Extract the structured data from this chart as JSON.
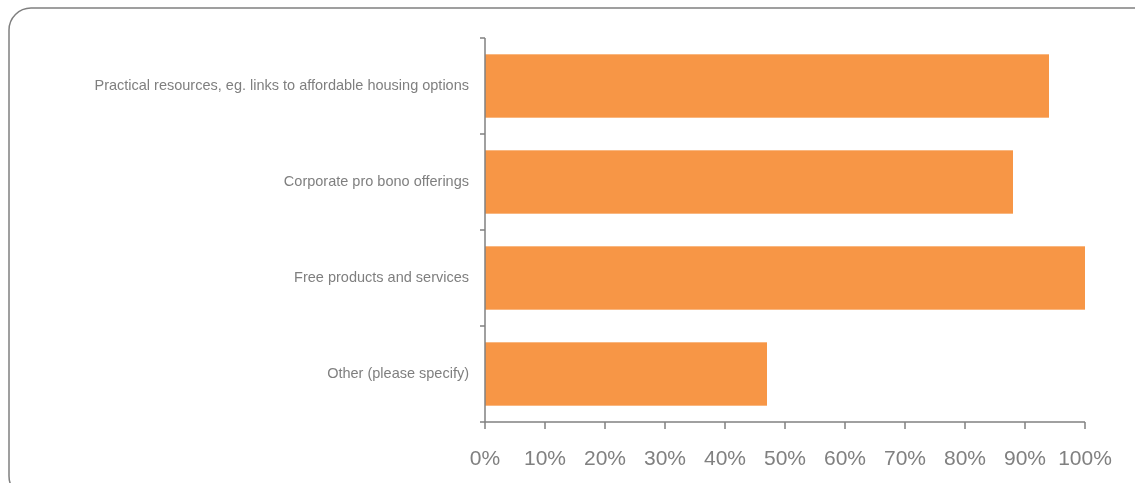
{
  "chart_data": {
    "type": "bar",
    "orientation": "horizontal",
    "categories": [
      "Practical resources, eg. links to affordable housing options",
      "Corporate pro bono offerings",
      "Free products and services",
      "Other (please specify)"
    ],
    "values": [
      94,
      88,
      100,
      47
    ],
    "color": "#f79646",
    "xlim": [
      0,
      100
    ],
    "xticks": [
      {
        "value": 0,
        "label": "0%"
      },
      {
        "value": 10,
        "label": "10%"
      },
      {
        "value": 20,
        "label": "20%"
      },
      {
        "value": 30,
        "label": "30%"
      },
      {
        "value": 40,
        "label": "40%"
      },
      {
        "value": 50,
        "label": "50%"
      },
      {
        "value": 60,
        "label": "60%"
      },
      {
        "value": 70,
        "label": "70%"
      },
      {
        "value": 80,
        "label": "80%"
      },
      {
        "value": 90,
        "label": "90%"
      },
      {
        "value": 100,
        "label": "100%"
      }
    ],
    "grid": false
  }
}
